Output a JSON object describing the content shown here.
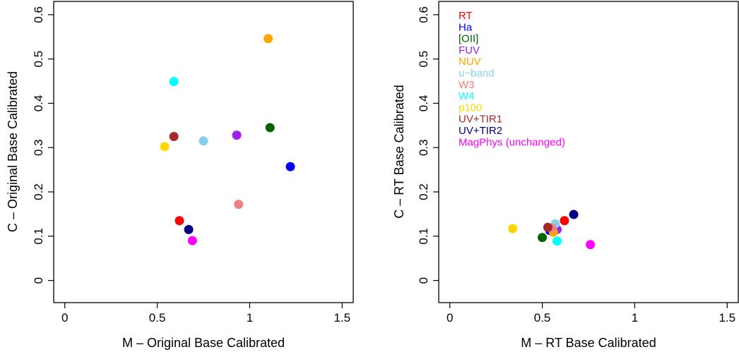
{
  "chart_data": [
    {
      "type": "scatter",
      "title": "",
      "xlabel": "M – Original Base Calibrated",
      "ylabel": "C – Original Base Calibrated",
      "xlim": [
        -0.06,
        1.56
      ],
      "ylim": [
        -0.05,
        0.63
      ],
      "xticks": [
        0,
        0.5,
        1,
        1.5
      ],
      "xtick_labels": [
        "0",
        "0.5",
        "1",
        "1.5"
      ],
      "yticks": [
        0,
        0.1,
        0.2,
        0.3,
        0.4,
        0.5,
        0.6
      ],
      "ytick_labels": [
        "0",
        "0.1",
        "0.2",
        "0.3",
        "0.4",
        "0.5",
        "0.6"
      ],
      "grid": false,
      "legend": null,
      "points": [
        {
          "series": "RT",
          "x": 0.62,
          "y": 0.135
        },
        {
          "series": "Ha",
          "x": 1.22,
          "y": 0.257
        },
        {
          "series": "[OII]",
          "x": 1.11,
          "y": 0.345
        },
        {
          "series": "FUV",
          "x": 0.93,
          "y": 0.328
        },
        {
          "series": "NUV",
          "x": 1.1,
          "y": 0.546
        },
        {
          "series": "u−band",
          "x": 0.75,
          "y": 0.315
        },
        {
          "series": "W3",
          "x": 0.94,
          "y": 0.172
        },
        {
          "series": "W4",
          "x": 0.59,
          "y": 0.449
        },
        {
          "series": "p100",
          "x": 0.54,
          "y": 0.302
        },
        {
          "series": "UV+TIR1",
          "x": 0.59,
          "y": 0.325
        },
        {
          "series": "UV+TIR2",
          "x": 0.67,
          "y": 0.115
        },
        {
          "series": "MagPhys (unchanged)",
          "x": 0.69,
          "y": 0.09
        }
      ]
    },
    {
      "type": "scatter",
      "title": "",
      "xlabel": "M – RT Base Calibrated",
      "ylabel": "C – RT Base Calibrated",
      "xlim": [
        -0.06,
        1.56
      ],
      "ylim": [
        -0.05,
        0.63
      ],
      "xticks": [
        0,
        0.5,
        1,
        1.5
      ],
      "xtick_labels": [
        "0",
        "0.5",
        "1",
        "1.5"
      ],
      "yticks": [
        0,
        0.1,
        0.2,
        0.3,
        0.4,
        0.5,
        0.6
      ],
      "ytick_labels": [
        "0",
        "0.1",
        "0.2",
        "0.3",
        "0.4",
        "0.5",
        "0.6"
      ],
      "grid": false,
      "legend": "top-left",
      "points": [
        {
          "series": "RT",
          "x": 0.62,
          "y": 0.135
        },
        {
          "series": "Ha",
          "x": 0.54,
          "y": 0.113
        },
        {
          "series": "[OII]",
          "x": 0.5,
          "y": 0.097
        },
        {
          "series": "FUV",
          "x": 0.58,
          "y": 0.115
        },
        {
          "series": "NUV",
          "x": 0.56,
          "y": 0.109
        },
        {
          "series": "u−band",
          "x": 0.57,
          "y": 0.128
        },
        {
          "series": "W3",
          "x": 0.55,
          "y": 0.118
        },
        {
          "series": "W4",
          "x": 0.58,
          "y": 0.089
        },
        {
          "series": "p100",
          "x": 0.34,
          "y": 0.117
        },
        {
          "series": "UV+TIR1",
          "x": 0.53,
          "y": 0.12
        },
        {
          "series": "UV+TIR2",
          "x": 0.67,
          "y": 0.149
        },
        {
          "series": "MagPhys (unchanged)",
          "x": 0.76,
          "y": 0.081
        }
      ]
    }
  ],
  "series": [
    {
      "name": "RT",
      "color": "#ff0000"
    },
    {
      "name": "Ha",
      "color": "#0000ee"
    },
    {
      "name": "[OII]",
      "color": "#006400"
    },
    {
      "name": "FUV",
      "color": "#a020f0"
    },
    {
      "name": "NUV",
      "color": "#ffa500"
    },
    {
      "name": "u−band",
      "color": "#87ceeb"
    },
    {
      "name": "W3",
      "color": "#f08080"
    },
    {
      "name": "W4",
      "color": "#00ffff"
    },
    {
      "name": "p100",
      "color": "#ffd700"
    },
    {
      "name": "UV+TIR1",
      "color": "#a52a2a"
    },
    {
      "name": "UV+TIR2",
      "color": "#000080"
    },
    {
      "name": "MagPhys (unchanged)",
      "color": "#ff00ff"
    }
  ]
}
